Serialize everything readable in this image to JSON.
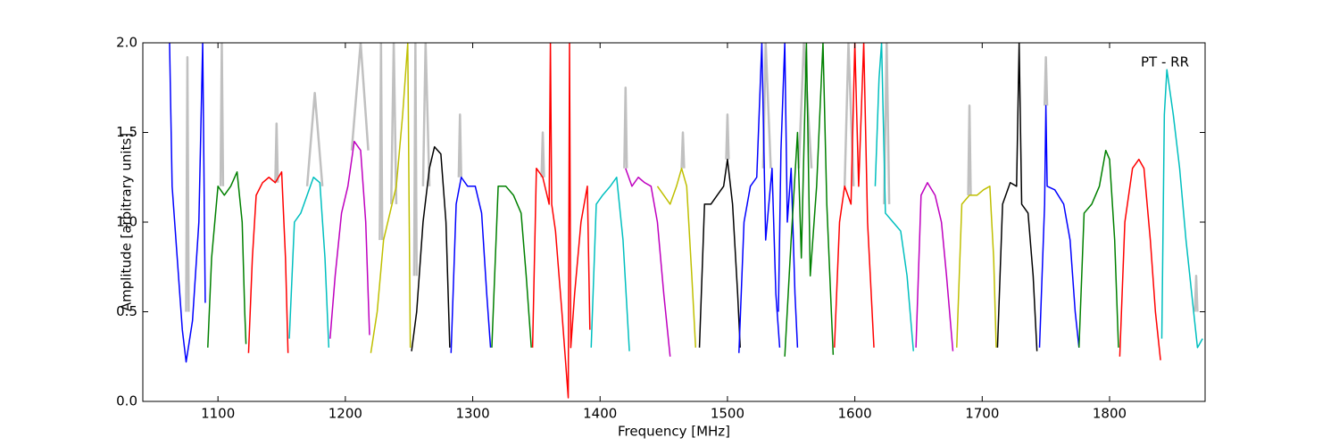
{
  "chart_data": {
    "type": "line",
    "xlabel": "Frequency [MHz]",
    "ylabel": "Amplitude [arbitrary units]",
    "annotation": "PT - RR",
    "xlim": [
      1041,
      1875
    ],
    "xticks": [
      1100,
      1200,
      1300,
      1400,
      1500,
      1600,
      1700,
      1800
    ],
    "ylim": [
      0,
      2
    ],
    "yticks": [
      {
        "value": 0,
        "label": "0.0"
      },
      {
        "value": 0.5,
        "label": "0.5"
      },
      {
        "value": 1,
        "label": "1.0"
      },
      {
        "value": 1.5,
        "label": "1.5"
      },
      {
        "value": 2,
        "label": "2.0"
      }
    ],
    "grid": false,
    "series": [
      {
        "color": "#c0c0c0",
        "x": [
          1075,
          1076,
          1077,
          1078,
          1102,
          1103,
          1104,
          1105,
          1145,
          1146,
          1147,
          1148,
          1170,
          1176,
          1182,
          1183,
          1205,
          1212,
          1218,
          1219,
          1227,
          1228,
          1229,
          1230,
          1236,
          1238,
          1240,
          1241,
          1254,
          1255,
          1256,
          1257,
          1261,
          1263,
          1266,
          1267,
          1289,
          1290,
          1291,
          1292,
          1354,
          1355,
          1356,
          1357,
          1419,
          1420,
          1421,
          1422,
          1464,
          1465,
          1466,
          1467,
          1499,
          1500,
          1501,
          1502,
          1528,
          1530,
          1534,
          1535,
          1556,
          1560,
          1566,
          1567,
          1592,
          1595,
          1599,
          1600,
          1623,
          1625,
          1627,
          1628,
          1689,
          1690,
          1691,
          1692,
          1749,
          1750,
          1751,
          1752,
          1867,
          1868,
          1869
        ],
        "values": [
          0.5,
          1.92,
          0.5,
          null,
          1.2,
          2.0,
          1.2,
          null,
          1.22,
          1.55,
          1.22,
          null,
          1.2,
          1.72,
          1.2,
          null,
          1.4,
          2.0,
          1.4,
          null,
          0.9,
          2.0,
          0.9,
          null,
          1.1,
          2.0,
          1.1,
          null,
          0.7,
          2.0,
          0.7,
          null,
          1.2,
          2.0,
          1.2,
          null,
          1.25,
          1.6,
          1.25,
          null,
          1.25,
          1.5,
          1.25,
          null,
          1.3,
          1.75,
          1.3,
          null,
          1.3,
          1.5,
          1.3,
          null,
          1.35,
          1.6,
          1.35,
          null,
          1.3,
          2.0,
          1.3,
          null,
          1.3,
          2.0,
          1.3,
          null,
          1.2,
          2.0,
          1.2,
          null,
          1.1,
          2.0,
          1.1,
          null,
          1.15,
          1.65,
          1.15,
          null,
          1.65,
          1.92,
          1.65,
          null,
          0.5,
          0.7,
          0.5
        ]
      },
      {
        "color": "#0000ff",
        "x": [
          1062,
          1064,
          1068,
          1072,
          1075,
          1080,
          1085,
          1088,
          1090
        ],
        "values": [
          2.0,
          1.2,
          0.8,
          0.4,
          0.22,
          0.45,
          1.0,
          2.0,
          0.55
        ]
      },
      {
        "color": "#008000",
        "x": [
          1092,
          1095,
          1100,
          1105,
          1110,
          1115,
          1119,
          1121,
          1122
        ],
        "values": [
          0.3,
          0.8,
          1.2,
          1.15,
          1.2,
          1.28,
          1.0,
          0.5,
          0.32
        ]
      },
      {
        "color": "#ff0000",
        "x": [
          1124,
          1127,
          1130,
          1135,
          1140,
          1145,
          1150,
          1153,
          1155
        ],
        "values": [
          0.27,
          0.8,
          1.15,
          1.22,
          1.25,
          1.22,
          1.28,
          0.8,
          0.27
        ]
      },
      {
        "color": "#00bfbf",
        "x": [
          1156,
          1160,
          1165,
          1170,
          1175,
          1180,
          1184,
          1187
        ],
        "values": [
          0.35,
          1.0,
          1.05,
          1.15,
          1.25,
          1.22,
          0.8,
          0.3
        ]
      },
      {
        "color": "#bf00bf",
        "x": [
          1188,
          1192,
          1197,
          1202,
          1207,
          1212,
          1216,
          1219
        ],
        "values": [
          0.35,
          0.7,
          1.05,
          1.2,
          1.45,
          1.4,
          1.0,
          0.37
        ]
      },
      {
        "color": "#bfbf00",
        "x": [
          1220,
          1225,
          1230,
          1235,
          1240,
          1245,
          1249,
          1251
        ],
        "values": [
          0.27,
          0.5,
          0.9,
          1.05,
          1.2,
          1.6,
          2.0,
          0.3
        ]
      },
      {
        "color": "#000000",
        "x": [
          1252,
          1256,
          1261,
          1266,
          1270,
          1275,
          1279,
          1282
        ],
        "values": [
          0.28,
          0.5,
          1.0,
          1.3,
          1.42,
          1.38,
          1.0,
          0.3
        ]
      },
      {
        "color": "#0000ff",
        "x": [
          1283,
          1287,
          1291,
          1296,
          1302,
          1307,
          1311,
          1314
        ],
        "values": [
          0.27,
          1.1,
          1.25,
          1.2,
          1.2,
          1.05,
          0.6,
          0.3
        ]
      },
      {
        "color": "#008000",
        "x": [
          1315,
          1320,
          1326,
          1332,
          1338,
          1342,
          1346
        ],
        "values": [
          0.3,
          1.2,
          1.2,
          1.15,
          1.05,
          0.7,
          0.3
        ]
      },
      {
        "color": "#ff0000",
        "x": [
          1347,
          1350,
          1355,
          1360,
          1361,
          1362,
          1365,
          1370,
          1375,
          1376,
          1377,
          1380,
          1385,
          1390,
          1392
        ],
        "values": [
          0.3,
          1.3,
          1.25,
          1.1,
          2.0,
          1.1,
          0.95,
          0.5,
          0.02,
          2.0,
          0.3,
          0.6,
          1.0,
          1.2,
          0.4
        ]
      },
      {
        "color": "#00bfbf",
        "x": [
          1393,
          1397,
          1402,
          1408,
          1413,
          1418,
          1423
        ],
        "values": [
          0.3,
          1.1,
          1.15,
          1.2,
          1.25,
          0.9,
          0.28
        ]
      },
      {
        "color": "#bf00bf",
        "x": [
          1420,
          1425,
          1430,
          1435,
          1440,
          1445,
          1450,
          1455
        ],
        "values": [
          1.3,
          1.2,
          1.25,
          1.22,
          1.2,
          1.0,
          0.6,
          0.25
        ]
      },
      {
        "color": "#bfbf00",
        "x": [
          1445,
          1450,
          1455,
          1460,
          1464,
          1468,
          1472,
          1475
        ],
        "values": [
          1.2,
          1.15,
          1.1,
          1.2,
          1.3,
          1.2,
          0.7,
          0.3
        ]
      },
      {
        "color": "#000000",
        "x": [
          1478,
          1482,
          1487,
          1492,
          1497,
          1500,
          1504,
          1508,
          1510
        ],
        "values": [
          0.3,
          1.1,
          1.1,
          1.15,
          1.2,
          1.35,
          1.1,
          0.6,
          0.3
        ]
      },
      {
        "color": "#0000ff",
        "x": [
          1509,
          1513,
          1518,
          1523,
          1527,
          1530,
          1535,
          1538,
          1541
        ],
        "values": [
          0.27,
          1.0,
          1.2,
          1.25,
          2.0,
          0.9,
          1.3,
          0.6,
          0.3
        ]
      },
      {
        "color": "#0000ff",
        "x": [
          1540,
          1542,
          1545,
          1547,
          1550,
          1553,
          1555
        ],
        "values": [
          0.5,
          1.4,
          2.0,
          1.0,
          1.3,
          0.6,
          0.3
        ]
      },
      {
        "color": "#008000",
        "x": [
          1545,
          1550,
          1555,
          1558,
          1562,
          1565,
          1570,
          1575,
          1578,
          1583
        ],
        "values": [
          0.25,
          0.9,
          1.5,
          0.8,
          2.0,
          0.7,
          1.2,
          2.0,
          1.1,
          0.26
        ]
      },
      {
        "color": "#ff0000",
        "x": [
          1584,
          1588,
          1592,
          1597,
          1600,
          1603,
          1607,
          1610,
          1615
        ],
        "values": [
          0.3,
          1.0,
          1.2,
          1.1,
          2.0,
          1.2,
          2.0,
          1.0,
          0.3
        ]
      },
      {
        "color": "#00bfbf",
        "x": [
          1616,
          1619,
          1621,
          1624,
          1630,
          1636,
          1641,
          1646
        ],
        "values": [
          1.2,
          1.8,
          2.0,
          1.05,
          1.0,
          0.95,
          0.7,
          0.28
        ]
      },
      {
        "color": "#bf00bf",
        "x": [
          1648,
          1652,
          1657,
          1663,
          1668,
          1672,
          1677
        ],
        "values": [
          0.3,
          1.15,
          1.22,
          1.15,
          1.0,
          0.7,
          0.28
        ]
      },
      {
        "color": "#bfbf00",
        "x": [
          1680,
          1684,
          1690,
          1696,
          1701,
          1706,
          1709,
          1711
        ],
        "values": [
          0.3,
          1.1,
          1.15,
          1.15,
          1.18,
          1.2,
          0.8,
          0.3
        ]
      },
      {
        "color": "#000000",
        "x": [
          1712,
          1716,
          1722,
          1727,
          1729,
          1731,
          1736,
          1740,
          1743
        ],
        "values": [
          0.3,
          1.1,
          1.22,
          1.2,
          2.0,
          1.1,
          1.05,
          0.7,
          0.28
        ]
      },
      {
        "color": "#0000ff",
        "x": [
          1745,
          1749,
          1750,
          1751,
          1757,
          1764,
          1769,
          1773,
          1776
        ],
        "values": [
          0.3,
          1.1,
          1.65,
          1.2,
          1.18,
          1.1,
          0.9,
          0.5,
          0.3
        ]
      },
      {
        "color": "#008000",
        "x": [
          1776,
          1780,
          1786,
          1792,
          1797,
          1800,
          1804,
          1807
        ],
        "values": [
          0.3,
          1.05,
          1.1,
          1.2,
          1.4,
          1.35,
          0.9,
          0.3
        ]
      },
      {
        "color": "#ff0000",
        "x": [
          1808,
          1812,
          1818,
          1823,
          1827,
          1832,
          1836,
          1840
        ],
        "values": [
          0.25,
          1.0,
          1.3,
          1.35,
          1.3,
          0.9,
          0.5,
          0.23
        ]
      },
      {
        "color": "#00bfbf",
        "x": [
          1841,
          1843,
          1845,
          1850,
          1855,
          1860,
          1866,
          1869,
          1873
        ],
        "values": [
          0.35,
          1.6,
          1.85,
          1.6,
          1.3,
          0.9,
          0.5,
          0.3,
          0.35
        ]
      }
    ]
  }
}
